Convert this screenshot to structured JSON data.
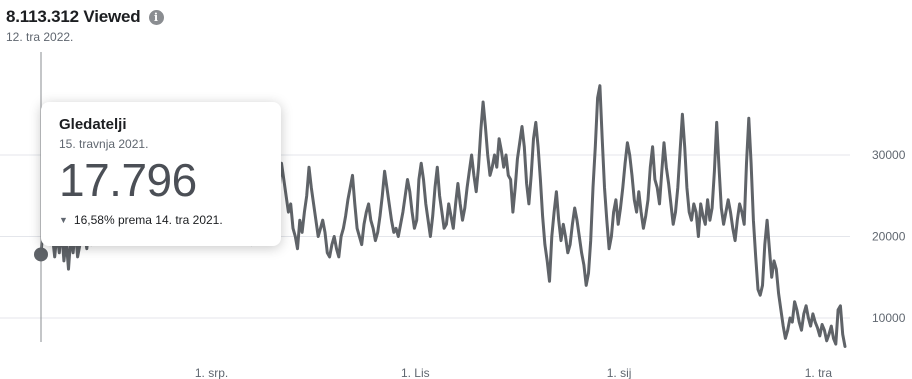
{
  "header": {
    "title": "8.113.312 Viewed",
    "date": "12. tra 2022.",
    "info_icon": "info-icon"
  },
  "tooltip": {
    "title": "Gledatelji",
    "date": "15. travnja 2021.",
    "value": "17.796",
    "change": "16,58% prema 14. tra 2021.",
    "change_icon": "triangle-down-icon"
  },
  "chart_data": {
    "type": "line",
    "title": "",
    "xlabel": "",
    "ylabel": "",
    "ylim": [
      5000,
      40000
    ],
    "y_ticks": [
      10000,
      20000,
      30000
    ],
    "y_tick_labels": [
      "10000",
      "20000",
      "30000"
    ],
    "x_tick_labels": [
      "1. srp.",
      "1. Lis",
      "1. sij",
      "1. tra"
    ],
    "x_tick_days": [
      77,
      169,
      261,
      351
    ],
    "x_range_days": [
      0,
      363
    ],
    "grid": true,
    "highlight_day": 0,
    "series": [
      {
        "values": [
          17796,
          21500,
          20000,
          22000,
          19000,
          20000,
          17500,
          20500,
          18000,
          21000,
          17000,
          19500,
          16000,
          20000,
          18000,
          21000,
          17500,
          19000,
          22000,
          20500,
          18500,
          21500,
          19000,
          22500,
          20000,
          21000,
          23000,
          21500,
          20000,
          24000,
          22000,
          20500,
          23500,
          22000,
          21000,
          24500,
          23000,
          25000,
          23500,
          22000,
          24000,
          26000,
          24500,
          23000,
          25500,
          27000,
          25000,
          26500,
          24000,
          23000,
          25500,
          27500,
          26000,
          28000,
          25500,
          24000,
          26500,
          25000,
          27000,
          29000,
          26500,
          25000,
          27500,
          26000,
          28500,
          30500,
          28000,
          26500,
          29000,
          27000,
          25500,
          27500,
          26000,
          29500,
          27500,
          25000,
          27000,
          26000,
          28000,
          30000,
          27500,
          26000,
          28500,
          30500,
          29000,
          26000,
          25000,
          27000,
          24500,
          23000,
          25500,
          22000,
          19000,
          22000,
          23000,
          24500,
          22000,
          21000,
          31000,
          28000,
          25500,
          26000,
          27500,
          24000,
          26000,
          29000,
          27000,
          25000,
          23000,
          24000,
          21000,
          20000,
          18500,
          22000,
          20500,
          23000,
          25000,
          28500,
          26000,
          24000,
          22000,
          20000,
          21000,
          22000,
          20500,
          18000,
          17500,
          19000,
          20000,
          18500,
          17500,
          20000,
          21000,
          22500,
          24500,
          26000,
          27500,
          24000,
          21000,
          20000,
          19000,
          21500,
          23000,
          24000,
          22000,
          21000,
          19500,
          20500,
          22500,
          25000,
          28000,
          26000,
          24000,
          22000,
          20500,
          21000,
          20000,
          21500,
          23000,
          25000,
          27000,
          25500,
          23000,
          21000,
          22000,
          27000,
          29000,
          27000,
          24000,
          22000,
          20000,
          22500,
          26000,
          28500,
          25000,
          23000,
          21000,
          21500,
          24000,
          22500,
          21000,
          24000,
          26500,
          24000,
          22000,
          23500,
          26000,
          28000,
          30000,
          27500,
          25500,
          28500,
          33000,
          36500,
          33500,
          30000,
          27500,
          28500,
          30000,
          28500,
          32000,
          30500,
          28500,
          30000,
          27500,
          27000,
          23000,
          26000,
          29500,
          31500,
          33500,
          31000,
          26500,
          24000,
          27500,
          32000,
          34000,
          31000,
          27000,
          22500,
          19000,
          17000,
          14500,
          20000,
          23000,
          25500,
          22000,
          19500,
          21500,
          20000,
          18000,
          19000,
          21500,
          23500,
          22000,
          20000,
          18000,
          16500,
          14000,
          15500,
          19500,
          26000,
          31000,
          37000,
          38500,
          32000,
          26000,
          22000,
          18500,
          20000,
          23000,
          24500,
          21500,
          23500,
          26000,
          29000,
          31500,
          30000,
          27500,
          24500,
          23000,
          25500,
          23000,
          21000,
          22500,
          24500,
          28500,
          31000,
          27000,
          26000,
          24000,
          28000,
          31500,
          28500,
          26500,
          24000,
          21500,
          23000,
          26000,
          30500,
          35000,
          31000,
          26000,
          23000,
          22000,
          24000,
          23000,
          20000,
          24000,
          22500,
          21500,
          24500,
          22000,
          23500,
          28000,
          34000,
          28500,
          23500,
          21500,
          23000,
          24500,
          23000,
          21000,
          19500,
          22000,
          24000,
          23000,
          21500,
          29000,
          34500,
          29000,
          22000,
          17500,
          13500,
          12800,
          14000,
          19000,
          22000,
          18500,
          15000,
          17000,
          16000,
          13000,
          11000,
          9000,
          7500,
          8500,
          10000,
          9500,
          12000,
          11000,
          9500,
          8500,
          10500,
          11500,
          10000,
          9000,
          10500,
          9500,
          8800,
          7800,
          9200,
          8500,
          7200,
          8000,
          9000,
          7500,
          6800,
          11000,
          11500,
          8000,
          6500
        ]
      }
    ]
  }
}
